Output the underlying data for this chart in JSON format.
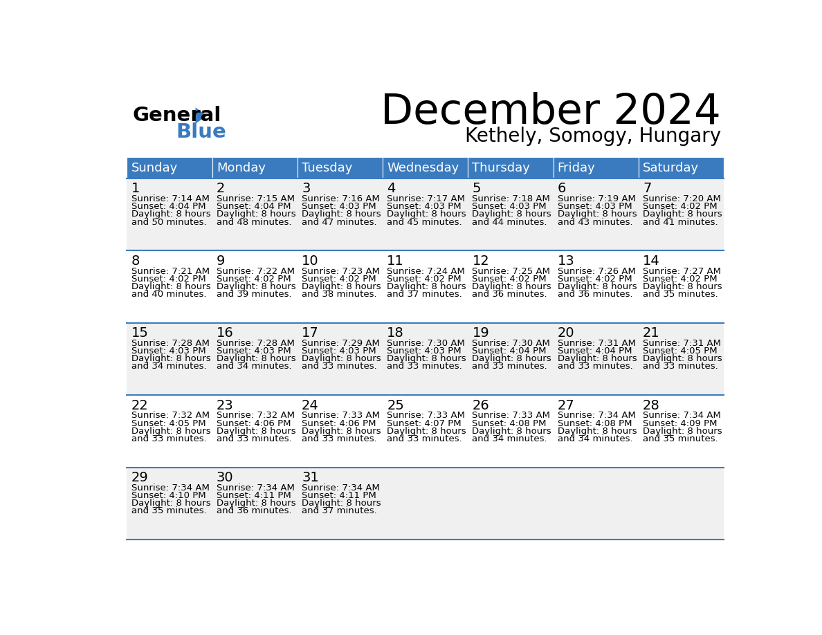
{
  "title": "December 2024",
  "subtitle": "Kethely, Somogy, Hungary",
  "header_color": "#3a7bbf",
  "header_text_color": "#ffffff",
  "cell_bg_even": "#f0f0f0",
  "cell_bg_odd": "#ffffff",
  "border_color": "#3a7bbf",
  "text_color": "#000000",
  "day_names": [
    "Sunday",
    "Monday",
    "Tuesday",
    "Wednesday",
    "Thursday",
    "Friday",
    "Saturday"
  ],
  "days": [
    {
      "day": 1,
      "col": 0,
      "row": 0,
      "sunrise": "7:14 AM",
      "sunset": "4:04 PM",
      "daylight": "8 hours",
      "daylight2": "and 50 minutes."
    },
    {
      "day": 2,
      "col": 1,
      "row": 0,
      "sunrise": "7:15 AM",
      "sunset": "4:04 PM",
      "daylight": "8 hours",
      "daylight2": "and 48 minutes."
    },
    {
      "day": 3,
      "col": 2,
      "row": 0,
      "sunrise": "7:16 AM",
      "sunset": "4:03 PM",
      "daylight": "8 hours",
      "daylight2": "and 47 minutes."
    },
    {
      "day": 4,
      "col": 3,
      "row": 0,
      "sunrise": "7:17 AM",
      "sunset": "4:03 PM",
      "daylight": "8 hours",
      "daylight2": "and 45 minutes."
    },
    {
      "day": 5,
      "col": 4,
      "row": 0,
      "sunrise": "7:18 AM",
      "sunset": "4:03 PM",
      "daylight": "8 hours",
      "daylight2": "and 44 minutes."
    },
    {
      "day": 6,
      "col": 5,
      "row": 0,
      "sunrise": "7:19 AM",
      "sunset": "4:03 PM",
      "daylight": "8 hours",
      "daylight2": "and 43 minutes."
    },
    {
      "day": 7,
      "col": 6,
      "row": 0,
      "sunrise": "7:20 AM",
      "sunset": "4:02 PM",
      "daylight": "8 hours",
      "daylight2": "and 41 minutes."
    },
    {
      "day": 8,
      "col": 0,
      "row": 1,
      "sunrise": "7:21 AM",
      "sunset": "4:02 PM",
      "daylight": "8 hours",
      "daylight2": "and 40 minutes."
    },
    {
      "day": 9,
      "col": 1,
      "row": 1,
      "sunrise": "7:22 AM",
      "sunset": "4:02 PM",
      "daylight": "8 hours",
      "daylight2": "and 39 minutes."
    },
    {
      "day": 10,
      "col": 2,
      "row": 1,
      "sunrise": "7:23 AM",
      "sunset": "4:02 PM",
      "daylight": "8 hours",
      "daylight2": "and 38 minutes."
    },
    {
      "day": 11,
      "col": 3,
      "row": 1,
      "sunrise": "7:24 AM",
      "sunset": "4:02 PM",
      "daylight": "8 hours",
      "daylight2": "and 37 minutes."
    },
    {
      "day": 12,
      "col": 4,
      "row": 1,
      "sunrise": "7:25 AM",
      "sunset": "4:02 PM",
      "daylight": "8 hours",
      "daylight2": "and 36 minutes."
    },
    {
      "day": 13,
      "col": 5,
      "row": 1,
      "sunrise": "7:26 AM",
      "sunset": "4:02 PM",
      "daylight": "8 hours",
      "daylight2": "and 36 minutes."
    },
    {
      "day": 14,
      "col": 6,
      "row": 1,
      "sunrise": "7:27 AM",
      "sunset": "4:02 PM",
      "daylight": "8 hours",
      "daylight2": "and 35 minutes."
    },
    {
      "day": 15,
      "col": 0,
      "row": 2,
      "sunrise": "7:28 AM",
      "sunset": "4:03 PM",
      "daylight": "8 hours",
      "daylight2": "and 34 minutes."
    },
    {
      "day": 16,
      "col": 1,
      "row": 2,
      "sunrise": "7:28 AM",
      "sunset": "4:03 PM",
      "daylight": "8 hours",
      "daylight2": "and 34 minutes."
    },
    {
      "day": 17,
      "col": 2,
      "row": 2,
      "sunrise": "7:29 AM",
      "sunset": "4:03 PM",
      "daylight": "8 hours",
      "daylight2": "and 33 minutes."
    },
    {
      "day": 18,
      "col": 3,
      "row": 2,
      "sunrise": "7:30 AM",
      "sunset": "4:03 PM",
      "daylight": "8 hours",
      "daylight2": "and 33 minutes."
    },
    {
      "day": 19,
      "col": 4,
      "row": 2,
      "sunrise": "7:30 AM",
      "sunset": "4:04 PM",
      "daylight": "8 hours",
      "daylight2": "and 33 minutes."
    },
    {
      "day": 20,
      "col": 5,
      "row": 2,
      "sunrise": "7:31 AM",
      "sunset": "4:04 PM",
      "daylight": "8 hours",
      "daylight2": "and 33 minutes."
    },
    {
      "day": 21,
      "col": 6,
      "row": 2,
      "sunrise": "7:31 AM",
      "sunset": "4:05 PM",
      "daylight": "8 hours",
      "daylight2": "and 33 minutes."
    },
    {
      "day": 22,
      "col": 0,
      "row": 3,
      "sunrise": "7:32 AM",
      "sunset": "4:05 PM",
      "daylight": "8 hours",
      "daylight2": "and 33 minutes."
    },
    {
      "day": 23,
      "col": 1,
      "row": 3,
      "sunrise": "7:32 AM",
      "sunset": "4:06 PM",
      "daylight": "8 hours",
      "daylight2": "and 33 minutes."
    },
    {
      "day": 24,
      "col": 2,
      "row": 3,
      "sunrise": "7:33 AM",
      "sunset": "4:06 PM",
      "daylight": "8 hours",
      "daylight2": "and 33 minutes."
    },
    {
      "day": 25,
      "col": 3,
      "row": 3,
      "sunrise": "7:33 AM",
      "sunset": "4:07 PM",
      "daylight": "8 hours",
      "daylight2": "and 33 minutes."
    },
    {
      "day": 26,
      "col": 4,
      "row": 3,
      "sunrise": "7:33 AM",
      "sunset": "4:08 PM",
      "daylight": "8 hours",
      "daylight2": "and 34 minutes."
    },
    {
      "day": 27,
      "col": 5,
      "row": 3,
      "sunrise": "7:34 AM",
      "sunset": "4:08 PM",
      "daylight": "8 hours",
      "daylight2": "and 34 minutes."
    },
    {
      "day": 28,
      "col": 6,
      "row": 3,
      "sunrise": "7:34 AM",
      "sunset": "4:09 PM",
      "daylight": "8 hours",
      "daylight2": "and 35 minutes."
    },
    {
      "day": 29,
      "col": 0,
      "row": 4,
      "sunrise": "7:34 AM",
      "sunset": "4:10 PM",
      "daylight": "8 hours",
      "daylight2": "and 35 minutes."
    },
    {
      "day": 30,
      "col": 1,
      "row": 4,
      "sunrise": "7:34 AM",
      "sunset": "4:11 PM",
      "daylight": "8 hours",
      "daylight2": "and 36 minutes."
    },
    {
      "day": 31,
      "col": 2,
      "row": 4,
      "sunrise": "7:34 AM",
      "sunset": "4:11 PM",
      "daylight": "8 hours",
      "daylight2": "and 37 minutes."
    }
  ],
  "num_rows": 5,
  "num_cols": 7
}
